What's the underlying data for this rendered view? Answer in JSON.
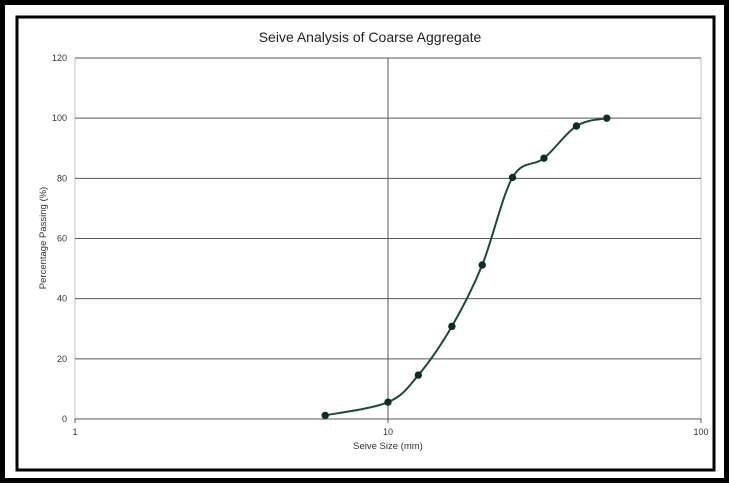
{
  "chart_data": {
    "type": "line",
    "title": "Seive Analysis of Coarse Aggregate",
    "xlabel": "Seive Size (mm)",
    "ylabel": "Percentage Passing (%)",
    "x_scale": "log",
    "xlim": [
      1,
      100
    ],
    "ylim": [
      0,
      120
    ],
    "x_ticks": [
      "1",
      "10",
      "100"
    ],
    "y_ticks": [
      "0",
      "20",
      "40",
      "60",
      "80",
      "100",
      "120"
    ],
    "grid": true,
    "legend": "none",
    "series": [
      {
        "x": [
          6.3,
          10,
          12.5,
          16,
          20,
          25,
          31.5,
          40,
          50
        ],
        "y": [
          1.2,
          5.6,
          14.6,
          30.8,
          51.2,
          80.3,
          86.7,
          97.4,
          100
        ],
        "color": "#1c4a36"
      }
    ]
  }
}
